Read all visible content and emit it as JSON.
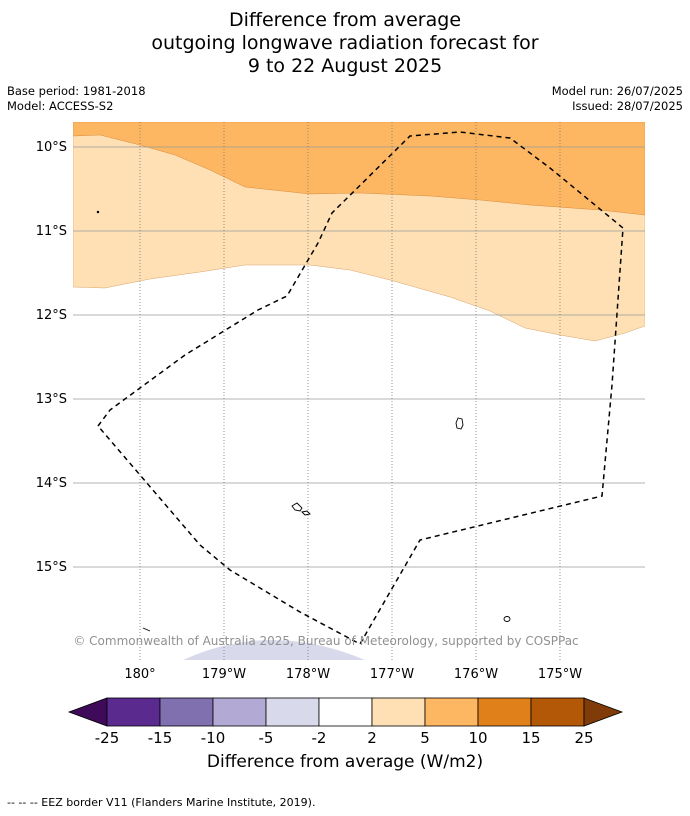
{
  "title": {
    "line1": "Difference from average",
    "line2": "outgoing longwave radiation forecast for",
    "line3": "9 to 22 August 2025"
  },
  "meta": {
    "base_period": "Base period: 1981-2018",
    "model": "Model: ACCESS-S2",
    "model_run": "Model run: 26/07/2025",
    "issued": "Issued: 28/07/2025"
  },
  "map": {
    "lat_labels": [
      "10°S",
      "11°S",
      "12°S",
      "13°S",
      "14°S",
      "15°S"
    ],
    "lon_labels": [
      "180°",
      "179°W",
      "178°W",
      "177°W",
      "176°W",
      "175°W"
    ],
    "copyright": "© Commonwealth of Australia 2025, Bureau of Meteorology, supported by COSPPac",
    "fill_colors": {
      "band_5_10": "#fdb762",
      "band_2_5": "#fee0b4",
      "band_m5_m2": "#d8daeb"
    }
  },
  "colorbar": {
    "title": "Difference from average (W/m2)",
    "ticks": [
      "-25",
      "-15",
      "-10",
      "-5",
      "-2",
      "2",
      "5",
      "10",
      "15",
      "25"
    ],
    "colors": [
      "#3f0a5a",
      "#5b2a8e",
      "#8170b0",
      "#b2aad4",
      "#d8daeb",
      "#ffffff",
      "#fee0b4",
      "#fdb762",
      "#e0801b",
      "#b35806",
      "#7f3b08"
    ]
  },
  "footnote": "--  --  -- EEZ border V11 (Flanders Marine Institute, 2019)."
}
